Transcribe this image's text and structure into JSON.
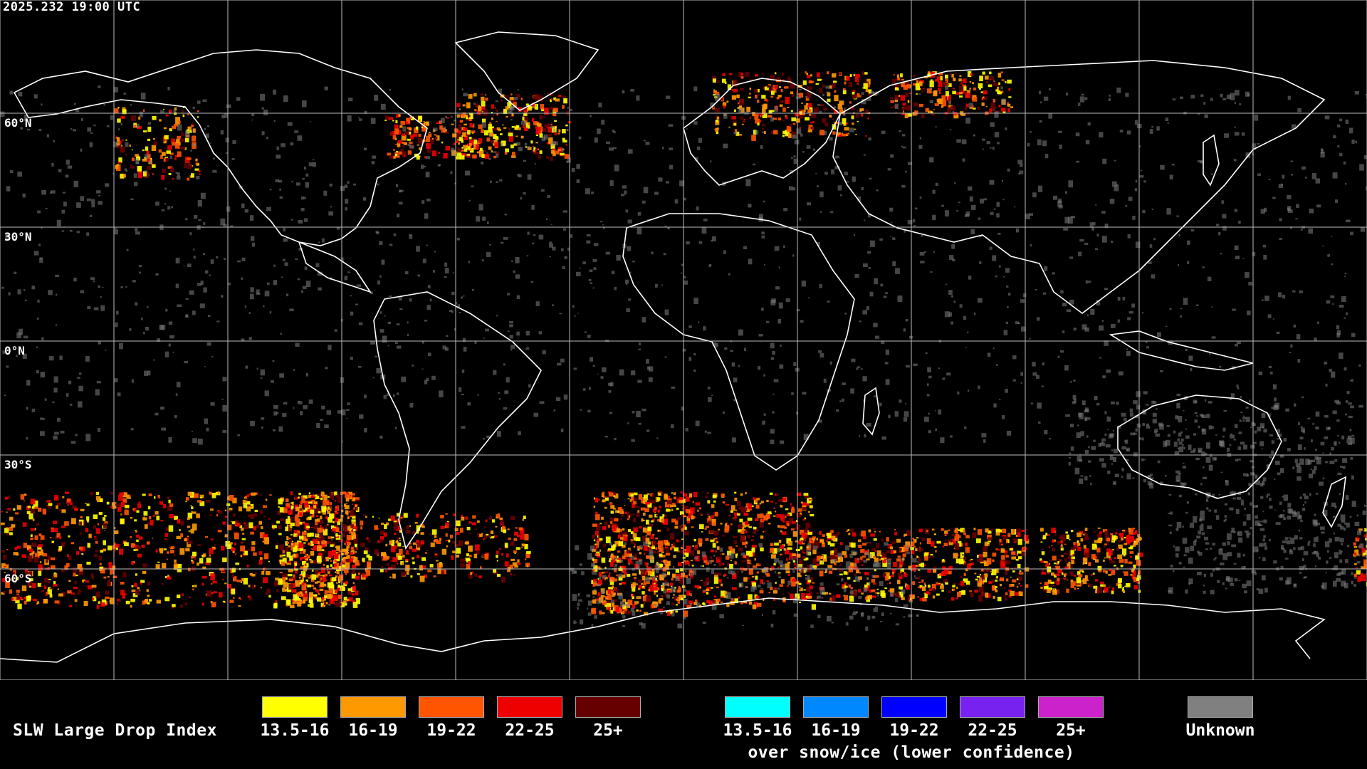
{
  "timestamp": "2025.232 19:00 UTC",
  "lat_labels": [
    "60°N",
    "30°N",
    "0°N",
    "30°S",
    "60°S"
  ],
  "legend": {
    "title": "SLW Large Drop Index",
    "water": [
      {
        "label": "13.5-16",
        "color": "#ffff00"
      },
      {
        "label": "16-19",
        "color": "#ff9900"
      },
      {
        "label": "19-22",
        "color": "#ff5500"
      },
      {
        "label": "22-25",
        "color": "#ee0000"
      },
      {
        "label": "25+",
        "color": "#660000"
      }
    ],
    "snow": [
      {
        "label": "13.5-16",
        "color": "#00ffff"
      },
      {
        "label": "16-19",
        "color": "#0088ff"
      },
      {
        "label": "19-22",
        "color": "#0000ff"
      },
      {
        "label": "22-25",
        "color": "#7722ee"
      },
      {
        "label": "25+",
        "color": "#cc22cc"
      }
    ],
    "snow_note": "over snow/ice (lower confidence)",
    "unknown": {
      "label": "Unknown",
      "color": "#808080"
    }
  }
}
